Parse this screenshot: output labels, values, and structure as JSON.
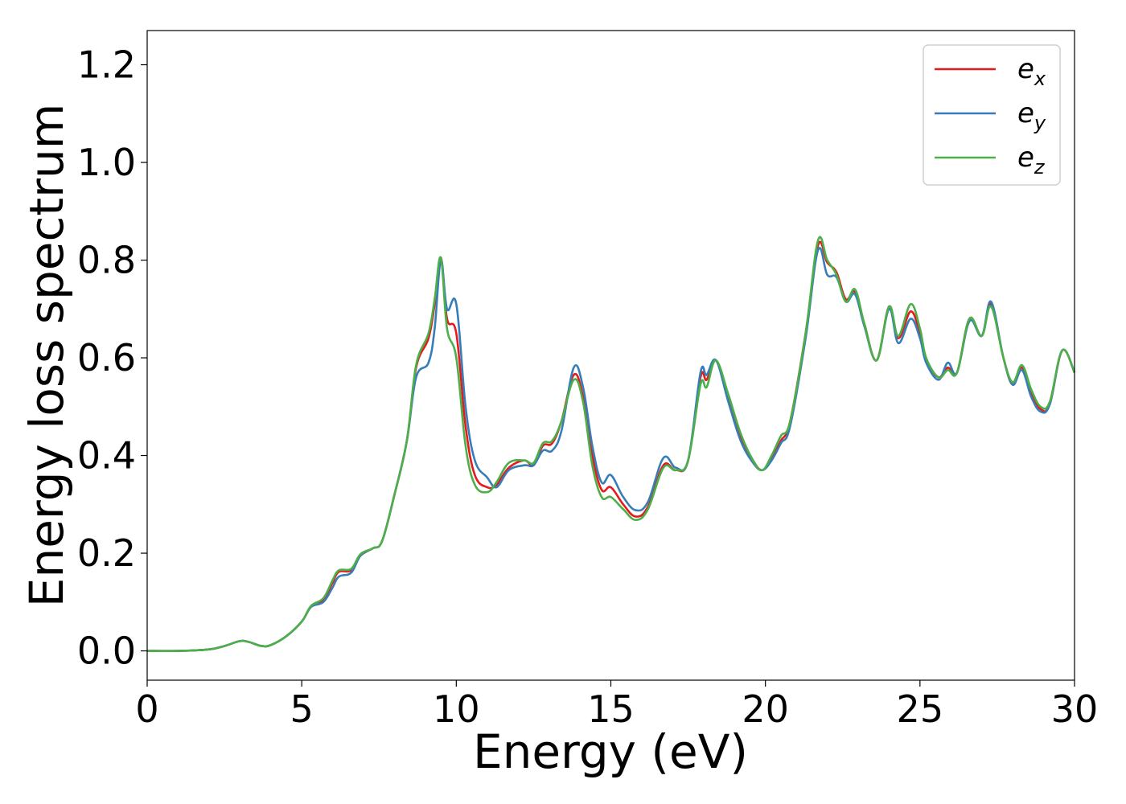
{
  "chart_data": {
    "type": "line",
    "title": "",
    "xlabel": "Energy (eV)",
    "ylabel": "Energy loss spectrum",
    "xlim": [
      0,
      30
    ],
    "ylim": [
      -0.06,
      1.27
    ],
    "x_ticks": [
      "0",
      "5",
      "10",
      "15",
      "20",
      "25",
      "30"
    ],
    "y_ticks": [
      "0.0",
      "0.2",
      "0.4",
      "0.6",
      "0.8",
      "1.0",
      "1.2"
    ],
    "grid": false,
    "legend_position": "top-right",
    "series": [
      {
        "name": "e",
        "subscript": "x",
        "color": "#e41a1c",
        "points": [
          [
            0,
            0
          ],
          [
            1,
            0
          ],
          [
            2,
            0.003
          ],
          [
            2.5,
            0.01
          ],
          [
            3,
            0.02
          ],
          [
            3.3,
            0.018
          ],
          [
            3.7,
            0.01
          ],
          [
            4,
            0.012
          ],
          [
            4.5,
            0.03
          ],
          [
            5,
            0.06
          ],
          [
            5.3,
            0.09
          ],
          [
            5.7,
            0.105
          ],
          [
            6,
            0.14
          ],
          [
            6.2,
            0.162
          ],
          [
            6.6,
            0.165
          ],
          [
            6.9,
            0.195
          ],
          [
            7.3,
            0.21
          ],
          [
            7.6,
            0.225
          ],
          [
            8,
            0.32
          ],
          [
            8.4,
            0.43
          ],
          [
            8.7,
            0.58
          ],
          [
            9.1,
            0.64
          ],
          [
            9.3,
            0.71
          ],
          [
            9.5,
            0.805
          ],
          [
            9.7,
            0.68
          ],
          [
            10,
            0.65
          ],
          [
            10.3,
            0.46
          ],
          [
            10.6,
            0.36
          ],
          [
            11,
            0.335
          ],
          [
            11.3,
            0.34
          ],
          [
            11.7,
            0.375
          ],
          [
            12.2,
            0.39
          ],
          [
            12.5,
            0.38
          ],
          [
            12.8,
            0.42
          ],
          [
            13.1,
            0.425
          ],
          [
            13.4,
            0.47
          ],
          [
            13.8,
            0.565
          ],
          [
            14.1,
            0.52
          ],
          [
            14.4,
            0.4
          ],
          [
            14.7,
            0.33
          ],
          [
            15,
            0.335
          ],
          [
            15.4,
            0.3
          ],
          [
            15.8,
            0.275
          ],
          [
            16.2,
            0.295
          ],
          [
            16.7,
            0.38
          ],
          [
            17.1,
            0.37
          ],
          [
            17.5,
            0.39
          ],
          [
            17.9,
            0.56
          ],
          [
            18.1,
            0.555
          ],
          [
            18.4,
            0.595
          ],
          [
            18.8,
            0.52
          ],
          [
            19.2,
            0.44
          ],
          [
            19.6,
            0.39
          ],
          [
            19.9,
            0.37
          ],
          [
            20.2,
            0.395
          ],
          [
            20.5,
            0.43
          ],
          [
            20.8,
            0.47
          ],
          [
            21.3,
            0.65
          ],
          [
            21.7,
            0.83
          ],
          [
            22,
            0.795
          ],
          [
            22.3,
            0.775
          ],
          [
            22.6,
            0.72
          ],
          [
            22.9,
            0.735
          ],
          [
            23.2,
            0.67
          ],
          [
            23.6,
            0.595
          ],
          [
            24,
            0.705
          ],
          [
            24.3,
            0.64
          ],
          [
            24.7,
            0.695
          ],
          [
            25,
            0.65
          ],
          [
            25.2,
            0.595
          ],
          [
            25.6,
            0.56
          ],
          [
            25.9,
            0.58
          ],
          [
            26.2,
            0.57
          ],
          [
            26.6,
            0.68
          ],
          [
            27,
            0.645
          ],
          [
            27.3,
            0.71
          ],
          [
            27.7,
            0.6
          ],
          [
            28,
            0.545
          ],
          [
            28.3,
            0.58
          ],
          [
            28.6,
            0.53
          ],
          [
            28.9,
            0.495
          ],
          [
            29.2,
            0.505
          ],
          [
            29.6,
            0.615
          ],
          [
            30,
            0.57
          ]
        ]
      },
      {
        "name": "e",
        "subscript": "y",
        "color": "#377eb8",
        "points": [
          [
            0,
            0
          ],
          [
            1,
            0
          ],
          [
            2,
            0.003
          ],
          [
            2.5,
            0.01
          ],
          [
            3,
            0.02
          ],
          [
            3.3,
            0.018
          ],
          [
            3.7,
            0.01
          ],
          [
            4,
            0.012
          ],
          [
            4.5,
            0.03
          ],
          [
            5,
            0.06
          ],
          [
            5.3,
            0.09
          ],
          [
            5.7,
            0.1
          ],
          [
            6,
            0.13
          ],
          [
            6.2,
            0.152
          ],
          [
            6.6,
            0.16
          ],
          [
            6.9,
            0.195
          ],
          [
            7.3,
            0.21
          ],
          [
            7.6,
            0.225
          ],
          [
            8,
            0.32
          ],
          [
            8.4,
            0.43
          ],
          [
            8.7,
            0.56
          ],
          [
            9.1,
            0.59
          ],
          [
            9.3,
            0.66
          ],
          [
            9.5,
            0.8
          ],
          [
            9.7,
            0.7
          ],
          [
            10,
            0.71
          ],
          [
            10.3,
            0.5
          ],
          [
            10.6,
            0.39
          ],
          [
            11,
            0.355
          ],
          [
            11.3,
            0.335
          ],
          [
            11.7,
            0.37
          ],
          [
            12.2,
            0.38
          ],
          [
            12.5,
            0.38
          ],
          [
            12.8,
            0.41
          ],
          [
            13.1,
            0.41
          ],
          [
            13.4,
            0.45
          ],
          [
            13.8,
            0.58
          ],
          [
            14.1,
            0.54
          ],
          [
            14.4,
            0.42
          ],
          [
            14.7,
            0.345
          ],
          [
            15,
            0.36
          ],
          [
            15.4,
            0.315
          ],
          [
            15.8,
            0.288
          ],
          [
            16.2,
            0.305
          ],
          [
            16.7,
            0.395
          ],
          [
            17.1,
            0.375
          ],
          [
            17.5,
            0.39
          ],
          [
            17.9,
            0.57
          ],
          [
            18.1,
            0.565
          ],
          [
            18.4,
            0.595
          ],
          [
            18.8,
            0.51
          ],
          [
            19.2,
            0.43
          ],
          [
            19.6,
            0.385
          ],
          [
            19.9,
            0.37
          ],
          [
            20.2,
            0.39
          ],
          [
            20.5,
            0.425
          ],
          [
            20.8,
            0.46
          ],
          [
            21.3,
            0.64
          ],
          [
            21.7,
            0.82
          ],
          [
            22,
            0.77
          ],
          [
            22.3,
            0.765
          ],
          [
            22.6,
            0.715
          ],
          [
            22.9,
            0.73
          ],
          [
            23.2,
            0.665
          ],
          [
            23.6,
            0.595
          ],
          [
            24,
            0.7
          ],
          [
            24.3,
            0.63
          ],
          [
            24.7,
            0.68
          ],
          [
            25,
            0.64
          ],
          [
            25.2,
            0.59
          ],
          [
            25.6,
            0.555
          ],
          [
            25.9,
            0.59
          ],
          [
            26.2,
            0.57
          ],
          [
            26.6,
            0.675
          ],
          [
            27,
            0.645
          ],
          [
            27.3,
            0.715
          ],
          [
            27.7,
            0.6
          ],
          [
            28,
            0.545
          ],
          [
            28.3,
            0.575
          ],
          [
            28.6,
            0.52
          ],
          [
            28.9,
            0.49
          ],
          [
            29.2,
            0.505
          ],
          [
            29.6,
            0.615
          ],
          [
            30,
            0.57
          ]
        ]
      },
      {
        "name": "e",
        "subscript": "z",
        "color": "#4daf4a",
        "points": [
          [
            0,
            0
          ],
          [
            1,
            0
          ],
          [
            2,
            0.003
          ],
          [
            2.5,
            0.01
          ],
          [
            3,
            0.02
          ],
          [
            3.3,
            0.018
          ],
          [
            3.7,
            0.01
          ],
          [
            4,
            0.012
          ],
          [
            4.5,
            0.03
          ],
          [
            5,
            0.06
          ],
          [
            5.3,
            0.092
          ],
          [
            5.7,
            0.108
          ],
          [
            6,
            0.145
          ],
          [
            6.2,
            0.165
          ],
          [
            6.6,
            0.168
          ],
          [
            6.9,
            0.198
          ],
          [
            7.3,
            0.21
          ],
          [
            7.6,
            0.225
          ],
          [
            8,
            0.32
          ],
          [
            8.4,
            0.43
          ],
          [
            8.7,
            0.585
          ],
          [
            9.1,
            0.65
          ],
          [
            9.3,
            0.72
          ],
          [
            9.5,
            0.805
          ],
          [
            9.7,
            0.66
          ],
          [
            10,
            0.6
          ],
          [
            10.3,
            0.42
          ],
          [
            10.6,
            0.34
          ],
          [
            11,
            0.325
          ],
          [
            11.3,
            0.345
          ],
          [
            11.7,
            0.385
          ],
          [
            12.2,
            0.39
          ],
          [
            12.5,
            0.385
          ],
          [
            12.8,
            0.425
          ],
          [
            13.1,
            0.43
          ],
          [
            13.4,
            0.47
          ],
          [
            13.8,
            0.555
          ],
          [
            14.1,
            0.51
          ],
          [
            14.4,
            0.38
          ],
          [
            14.7,
            0.315
          ],
          [
            15,
            0.315
          ],
          [
            15.4,
            0.29
          ],
          [
            15.8,
            0.268
          ],
          [
            16.2,
            0.29
          ],
          [
            16.7,
            0.375
          ],
          [
            17.1,
            0.37
          ],
          [
            17.5,
            0.39
          ],
          [
            17.9,
            0.545
          ],
          [
            18.1,
            0.54
          ],
          [
            18.4,
            0.595
          ],
          [
            18.8,
            0.525
          ],
          [
            19.2,
            0.445
          ],
          [
            19.6,
            0.39
          ],
          [
            19.9,
            0.37
          ],
          [
            20.2,
            0.4
          ],
          [
            20.5,
            0.44
          ],
          [
            20.8,
            0.47
          ],
          [
            21.3,
            0.65
          ],
          [
            21.7,
            0.84
          ],
          [
            22,
            0.8
          ],
          [
            22.3,
            0.77
          ],
          [
            22.6,
            0.715
          ],
          [
            22.9,
            0.74
          ],
          [
            23.2,
            0.67
          ],
          [
            23.6,
            0.595
          ],
          [
            24,
            0.705
          ],
          [
            24.3,
            0.645
          ],
          [
            24.7,
            0.71
          ],
          [
            25,
            0.66
          ],
          [
            25.2,
            0.6
          ],
          [
            25.6,
            0.56
          ],
          [
            25.9,
            0.575
          ],
          [
            26.2,
            0.57
          ],
          [
            26.6,
            0.68
          ],
          [
            27,
            0.645
          ],
          [
            27.3,
            0.705
          ],
          [
            27.7,
            0.6
          ],
          [
            28,
            0.55
          ],
          [
            28.3,
            0.585
          ],
          [
            28.6,
            0.535
          ],
          [
            28.9,
            0.5
          ],
          [
            29.2,
            0.51
          ],
          [
            29.6,
            0.615
          ],
          [
            30,
            0.57
          ]
        ]
      }
    ]
  }
}
